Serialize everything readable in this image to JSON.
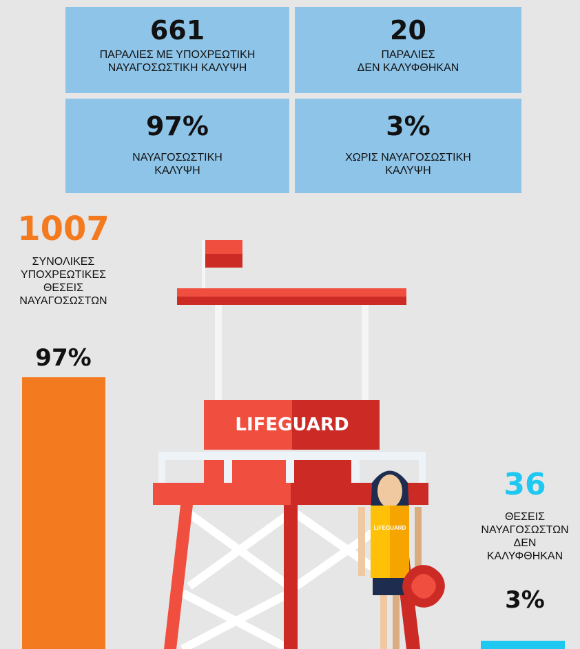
{
  "stats": [
    {
      "number": "661",
      "label": [
        "ΠΑΡΑΛΙΕΣ ΜΕ ΥΠΟΧΡΕΩΤΙΚΗ",
        "ΝΑΥΑΓΟΣΩΣΤΙΚΗ ΚΑΛΥΨΗ"
      ]
    },
    {
      "number": "20",
      "label": [
        "ΠΑΡΑΛΙΕΣ",
        "ΔΕΝ ΚΑΛΥΦΘΗΚΑΝ"
      ]
    },
    {
      "number": "97%",
      "label": [
        "ΝΑΥΑΓΟΣΩΣΤΙΚΗ",
        "ΚΑΛΥΨΗ"
      ]
    },
    {
      "number": "3%",
      "label": [
        "ΧΩΡΙΣ ΝΑΥΑΓΟΣΩΣΤΙΚΗ",
        "ΚΑΛΥΨΗ"
      ]
    }
  ],
  "positions": [
    {
      "number": "1007",
      "label": [
        "ΣΥΝΟΛΙΚΕΣ",
        "ΥΠΟΧΡΕΩΤΙΚΕΣ",
        "ΘΕΣΕΙΣ",
        "ΝΑΥΑΓΟΣΩΣΤΩΝ"
      ],
      "share": {
        "value": 97,
        "label": "97%"
      },
      "color": "#f47a20"
    },
    {
      "number": "36",
      "label": [
        "ΘΕΣΕΙΣ",
        "ΝΑΥΑΓΟΣΩΣΤΩΝ",
        "ΔΕΝ",
        "ΚΑΛΥΦΘΗΚΑΝ"
      ],
      "share": {
        "value": 3,
        "label": "3%"
      },
      "color": "#1ec8f0"
    }
  ],
  "illustration": {
    "sign": "LIFEGUARD",
    "shirt": "LIFEGUARD"
  }
}
